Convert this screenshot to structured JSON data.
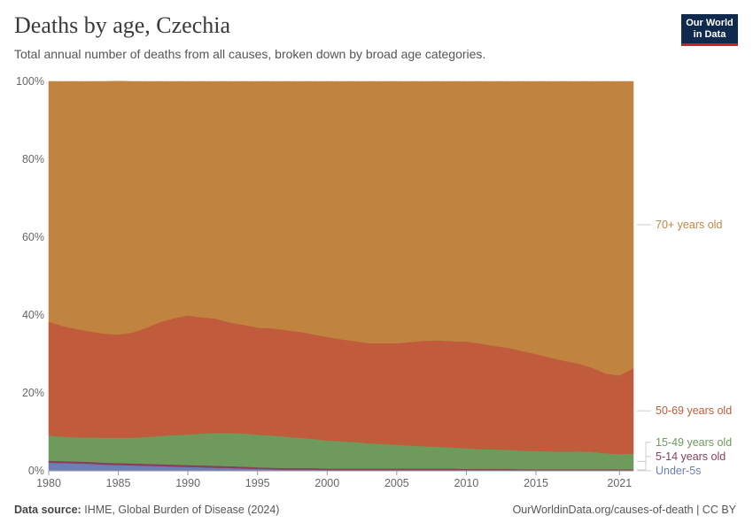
{
  "header": {
    "title": "Deaths by age, Czechia",
    "subtitle": "Total annual number of deaths from all causes, broken down by broad age categories."
  },
  "logo": {
    "line1": "Our World",
    "line2": "in Data"
  },
  "footer": {
    "source_label": "Data source:",
    "source_text": "IHME, Global Burden of Disease (2024)",
    "link": "OurWorldinData.org/causes-of-death | CC BY"
  },
  "chart_data": {
    "type": "area",
    "stacked": true,
    "relative": true,
    "x": [
      1980,
      1981,
      1982,
      1983,
      1984,
      1985,
      1986,
      1987,
      1988,
      1989,
      1990,
      1991,
      1992,
      1993,
      1994,
      1995,
      1996,
      1997,
      1998,
      1999,
      2000,
      2001,
      2002,
      2003,
      2004,
      2005,
      2006,
      2007,
      2008,
      2009,
      2010,
      2011,
      2012,
      2013,
      2014,
      2015,
      2016,
      2017,
      2018,
      2019,
      2020,
      2021,
      2022
    ],
    "x_ticks": [
      "1980",
      "1985",
      "1990",
      "1995",
      "2000",
      "2005",
      "2010",
      "2015",
      "2021"
    ],
    "y_ticks": [
      "0%",
      "20%",
      "40%",
      "60%",
      "80%",
      "100%"
    ],
    "ylim": [
      0,
      100
    ],
    "series": [
      {
        "name": "Under-5s",
        "color": "#6b7fb5",
        "values": [
          2.1,
          2.0,
          1.9,
          1.8,
          1.6,
          1.5,
          1.4,
          1.3,
          1.2,
          1.1,
          1.0,
          0.9,
          0.8,
          0.7,
          0.6,
          0.5,
          0.4,
          0.3,
          0.3,
          0.3,
          0.2,
          0.2,
          0.2,
          0.2,
          0.2,
          0.2,
          0.2,
          0.2,
          0.2,
          0.2,
          0.2,
          0.2,
          0.2,
          0.2,
          0.1,
          0.1,
          0.1,
          0.1,
          0.1,
          0.1,
          0.1,
          0.1,
          0.1
        ]
      },
      {
        "name": "5-14 years old",
        "color": "#8c3c5c",
        "values": [
          0.5,
          0.5,
          0.5,
          0.5,
          0.5,
          0.5,
          0.5,
          0.5,
          0.5,
          0.5,
          0.5,
          0.5,
          0.5,
          0.5,
          0.5,
          0.4,
          0.4,
          0.4,
          0.4,
          0.4,
          0.4,
          0.4,
          0.4,
          0.4,
          0.4,
          0.4,
          0.4,
          0.4,
          0.4,
          0.4,
          0.3,
          0.3,
          0.3,
          0.3,
          0.3,
          0.3,
          0.3,
          0.3,
          0.3,
          0.3,
          0.3,
          0.3,
          0.3
        ]
      },
      {
        "name": "15-49 years old",
        "color": "#6e9a5c",
        "values": [
          6.5,
          6.3,
          6.2,
          6.3,
          6.4,
          6.5,
          6.6,
          6.9,
          7.2,
          7.6,
          7.8,
          8.2,
          8.4,
          8.5,
          8.5,
          8.4,
          8.3,
          8.1,
          7.8,
          7.5,
          7.2,
          7.0,
          6.8,
          6.5,
          6.3,
          6.1,
          5.9,
          5.7,
          5.6,
          5.4,
          5.3,
          5.1,
          5.0,
          4.9,
          4.8,
          4.7,
          4.6,
          4.6,
          4.6,
          4.5,
          4.1,
          3.9,
          4.0
        ]
      },
      {
        "name": "50-69 years old",
        "color": "#c05b3c",
        "values": [
          29.2,
          28.4,
          27.8,
          27.2,
          26.7,
          26.5,
          27.0,
          28.0,
          29.3,
          30.0,
          30.6,
          29.8,
          29.4,
          28.4,
          27.9,
          27.5,
          27.5,
          27.4,
          27.2,
          26.9,
          26.6,
          26.2,
          25.9,
          25.7,
          25.9,
          26.1,
          26.6,
          27.1,
          27.3,
          27.3,
          27.4,
          27.1,
          26.6,
          26.2,
          25.6,
          24.9,
          24.1,
          23.3,
          22.6,
          21.6,
          20.5,
          20.2,
          22.0
        ]
      },
      {
        "name": "70+ years old",
        "color": "#c08440",
        "values": [
          61.7,
          62.8,
          63.6,
          64.2,
          64.8,
          65.1,
          64.5,
          63.3,
          61.8,
          60.8,
          60.1,
          60.6,
          60.9,
          61.9,
          62.5,
          63.2,
          63.4,
          63.8,
          64.3,
          64.9,
          65.6,
          66.2,
          66.7,
          67.2,
          67.2,
          67.2,
          66.9,
          66.6,
          66.5,
          66.7,
          66.8,
          67.3,
          67.9,
          68.4,
          69.2,
          70.0,
          70.9,
          71.7,
          72.4,
          73.5,
          75.0,
          75.5,
          73.6
        ]
      }
    ]
  }
}
